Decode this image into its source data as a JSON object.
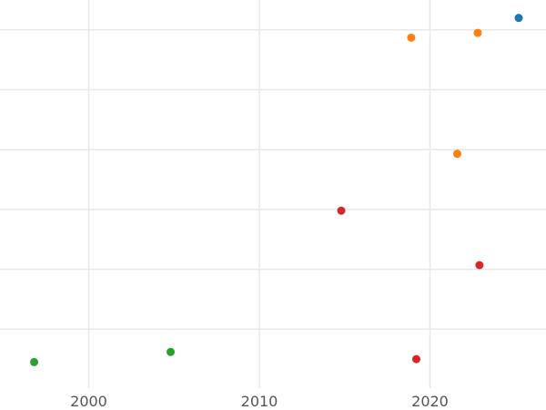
{
  "chart_data": {
    "type": "scatter",
    "title": "",
    "xlabel": "",
    "ylabel": "",
    "xlim": [
      1994.8,
      2026.8
    ],
    "xticks": [
      2000,
      2010,
      2020
    ],
    "xtick_labels": [
      "2000",
      "2010",
      "2020"
    ],
    "grid": true,
    "legend": "none",
    "series": [
      {
        "color": "#1f77b4",
        "points": [
          {
            "x": 2025.2,
            "y": 6.2
          }
        ]
      },
      {
        "color": "#ff7f0e",
        "points": [
          {
            "x": 2018.9,
            "y": 5.87
          },
          {
            "x": 2022.8,
            "y": 5.95
          },
          {
            "x": 2021.6,
            "y": 3.93
          }
        ]
      },
      {
        "color": "#2ca02c",
        "points": [
          {
            "x": 1996.8,
            "y": 0.45
          },
          {
            "x": 2004.8,
            "y": 0.62
          }
        ]
      },
      {
        "color": "#d62728",
        "points": [
          {
            "x": 2014.8,
            "y": 2.98
          },
          {
            "x": 2022.9,
            "y": 2.07
          },
          {
            "x": 2019.2,
            "y": 0.5
          }
        ]
      }
    ]
  }
}
